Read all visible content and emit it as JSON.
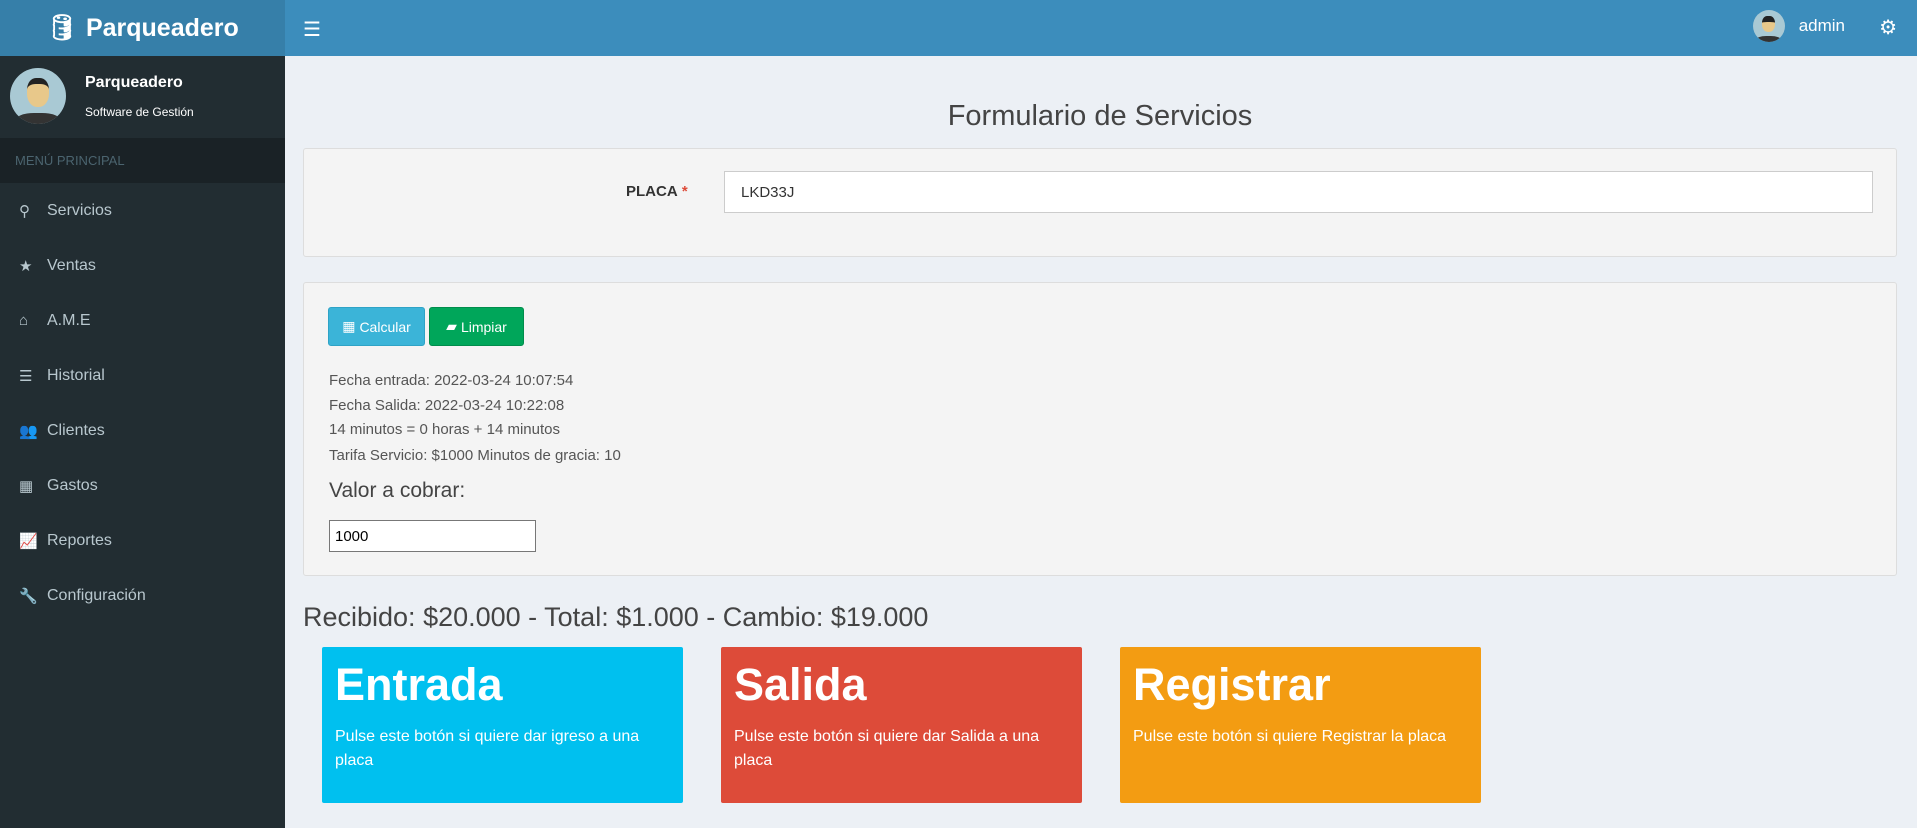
{
  "brand": {
    "title": "Parqueadero",
    "icon": "database-icon"
  },
  "topbar": {
    "menu_icon": "bars-icon",
    "user": "admin",
    "settings_icon": "gears-icon"
  },
  "sidebar": {
    "user_name": "Parqueadero",
    "user_sub": "Software de Gestión",
    "menu_header": "MENÚ PRINCIPAL",
    "items": [
      {
        "label": "Servicios",
        "icon": "motorcycle-icon"
      },
      {
        "label": "Ventas",
        "icon": "star-icon"
      },
      {
        "label": "A.M.E",
        "icon": "home-icon"
      },
      {
        "label": "Historial",
        "icon": "list-icon"
      },
      {
        "label": "Clientes",
        "icon": "users-icon"
      },
      {
        "label": "Gastos",
        "icon": "calculator-icon"
      },
      {
        "label": "Reportes",
        "icon": "line-chart-icon"
      },
      {
        "label": "Configuración",
        "icon": "wrench-icon"
      }
    ]
  },
  "main": {
    "title": "Formulario de Servicios",
    "placa_label": "PLACA",
    "required": "*",
    "placa_value": "LKD33J",
    "calcular": "Calcular",
    "limpiar": "Limpiar",
    "fecha_entrada": "Fecha entrada: 2022-03-24 10:07:54",
    "fecha_salida": "Fecha Salida: 2022-03-24 10:22:08",
    "minutos": "14 minutos = 0 horas + 14 minutos",
    "tarifa": "Tarifa Servicio: $1000 Minutos de gracia: 10",
    "valor_label": "Valor a cobrar:",
    "valor_value": "1000",
    "resumen": "Recibido: $20.000 - Total: $1.000 - Cambio: $19.000",
    "boxes": [
      {
        "title": "Entrada",
        "text": "Pulse este botón si quiere dar igreso a una placa",
        "color": "#00c0ef"
      },
      {
        "title": "Salida",
        "text": "Pulse este botón si quiere dar Salida a una placa",
        "color": "#dd4b39"
      },
      {
        "title": "Registrar",
        "text": "Pulse este botón si quiere Registrar la placa",
        "color": "#f39c12"
      }
    ]
  }
}
